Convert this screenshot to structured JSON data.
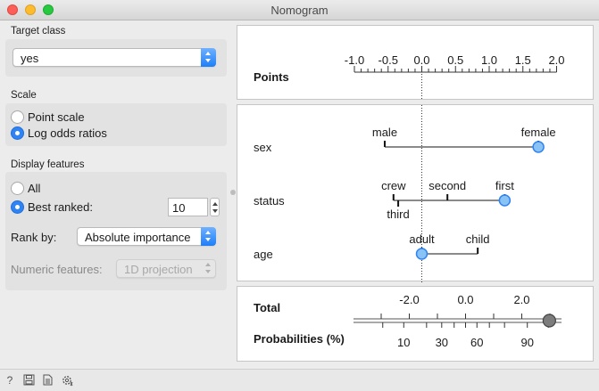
{
  "window": {
    "title": "Nomogram"
  },
  "sidebar": {
    "target_class": {
      "label": "Target class",
      "value": "yes"
    },
    "scale": {
      "label": "Scale",
      "options": [
        {
          "label": "Point scale",
          "selected": false
        },
        {
          "label": "Log odds ratios",
          "selected": true
        }
      ]
    },
    "display_features": {
      "label": "Display features",
      "options": [
        {
          "label": "All",
          "selected": false
        },
        {
          "label": "Best ranked:",
          "selected": true
        }
      ],
      "best_ranked_value": "10",
      "rank_by": {
        "label": "Rank by:",
        "value": "Absolute importance"
      },
      "numeric_features": {
        "label": "Numeric features:",
        "value": "1D projection",
        "enabled": false
      }
    }
  },
  "points_axis": {
    "label": "Points",
    "ticks": [
      "-1.0",
      "-0.5",
      "0.0",
      "0.5",
      "1.0",
      "1.5",
      "2.0"
    ],
    "values": [
      -1.0,
      -0.5,
      0.0,
      0.5,
      1.0,
      1.5,
      2.0
    ]
  },
  "features": [
    {
      "name": "sex",
      "values": [
        {
          "label": "male",
          "points": -0.55,
          "selected": false,
          "label_pos": "above"
        },
        {
          "label": "female",
          "points": 1.73,
          "selected": true,
          "label_pos": "above"
        }
      ]
    },
    {
      "name": "status",
      "values": [
        {
          "label": "crew",
          "points": -0.42,
          "selected": false,
          "label_pos": "above"
        },
        {
          "label": "third",
          "points": -0.35,
          "selected": false,
          "label_pos": "below"
        },
        {
          "label": "second",
          "points": 0.38,
          "selected": false,
          "label_pos": "above"
        },
        {
          "label": "first",
          "points": 1.23,
          "selected": true,
          "label_pos": "above"
        }
      ]
    },
    {
      "name": "age",
      "values": [
        {
          "label": "adult",
          "points": 0.0,
          "selected": true,
          "label_pos": "above"
        },
        {
          "label": "child",
          "points": 0.83,
          "selected": false,
          "label_pos": "above"
        }
      ]
    }
  ],
  "total": {
    "label": "Total",
    "ticks": [
      "-2.0",
      "0.0",
      "2.0"
    ],
    "values": [
      -2.0,
      0.0,
      2.0
    ],
    "current": 2.98
  },
  "probabilities": {
    "label": "Probabilities (%)",
    "tick_labels": [
      "10",
      "30",
      "60",
      "90"
    ],
    "labeled_values": [
      10,
      30,
      60,
      90
    ]
  },
  "colors": {
    "accent": "#2f83f2",
    "marker_fill": "#89c2f5",
    "marker_stroke": "#2f83f2",
    "total_marker": "#7d7d7d"
  },
  "toolbar": {
    "icons": [
      "help-icon",
      "save-icon",
      "report-icon",
      "settings-icon"
    ]
  }
}
